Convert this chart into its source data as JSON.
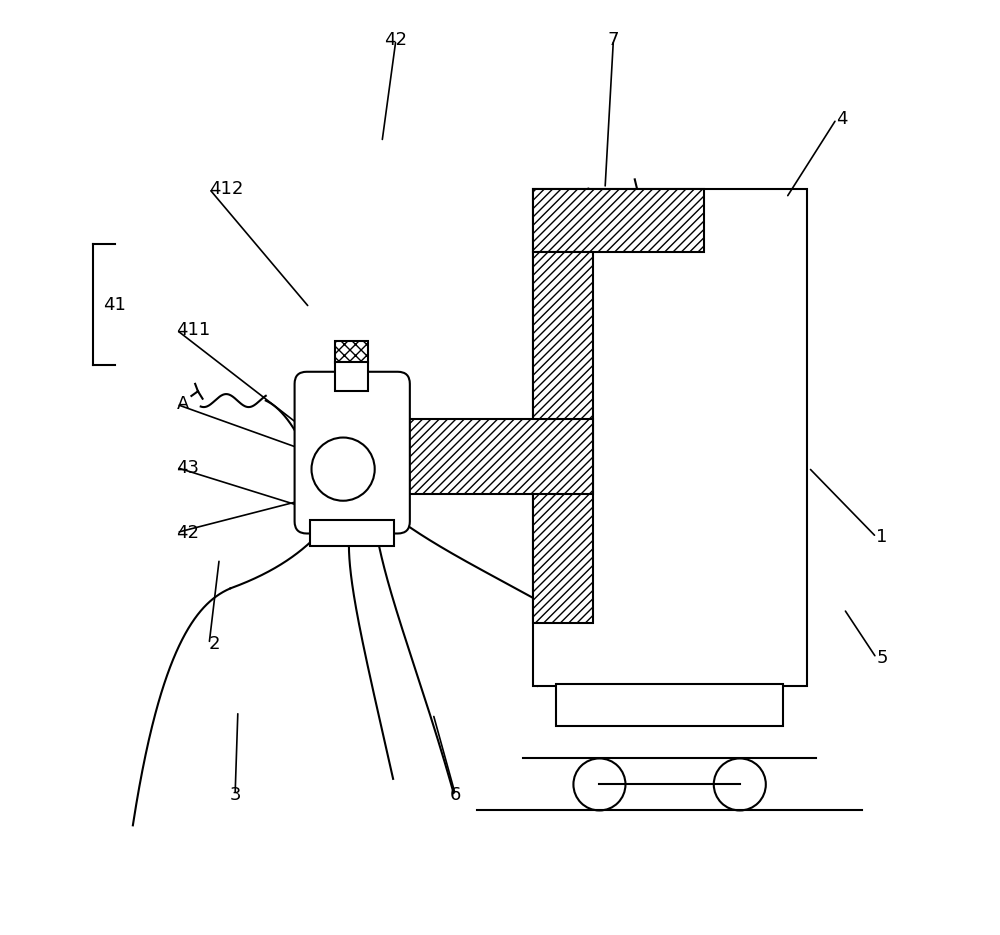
{
  "bg_color": "#ffffff",
  "lc": "#000000",
  "lw": 1.5,
  "font_size": 13
}
